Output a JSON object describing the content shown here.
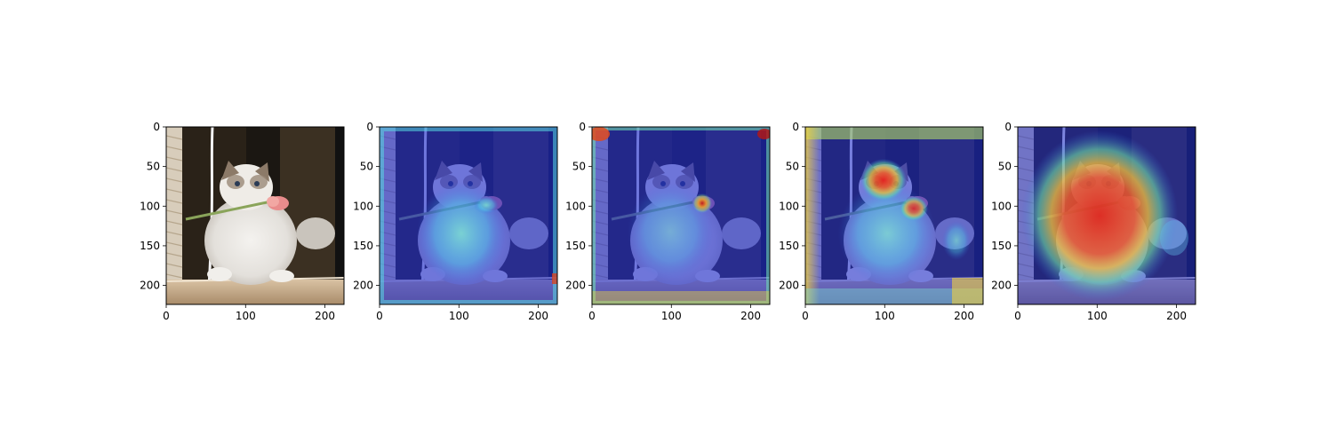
{
  "chart_data": [
    {
      "type": "heatmap",
      "overlay": "none",
      "x_ticks": [
        "0",
        "100",
        "200"
      ],
      "y_ticks": [
        "0",
        "50",
        "100",
        "150",
        "200"
      ],
      "xlim": [
        0,
        224
      ],
      "ylim": [
        224,
        0
      ]
    },
    {
      "type": "heatmap",
      "overlay": "jet",
      "x_ticks": [
        "0",
        "100",
        "200"
      ],
      "y_ticks": [
        "0",
        "50",
        "100",
        "150",
        "200"
      ],
      "xlim": [
        0,
        224
      ],
      "ylim": [
        224,
        0
      ]
    },
    {
      "type": "heatmap",
      "overlay": "jet",
      "x_ticks": [
        "0",
        "100",
        "200"
      ],
      "y_ticks": [
        "0",
        "50",
        "100",
        "150",
        "200"
      ],
      "xlim": [
        0,
        224
      ],
      "ylim": [
        224,
        0
      ]
    },
    {
      "type": "heatmap",
      "overlay": "jet",
      "x_ticks": [
        "0",
        "100",
        "200"
      ],
      "y_ticks": [
        "0",
        "50",
        "100",
        "150",
        "200"
      ],
      "xlim": [
        0,
        224
      ],
      "ylim": [
        224,
        0
      ]
    },
    {
      "type": "heatmap",
      "overlay": "jet",
      "x_ticks": [
        "0",
        "100",
        "200"
      ],
      "y_ticks": [
        "0",
        "50",
        "100",
        "150",
        "200"
      ],
      "xlim": [
        0,
        224
      ],
      "ylim": [
        224,
        0
      ]
    }
  ]
}
